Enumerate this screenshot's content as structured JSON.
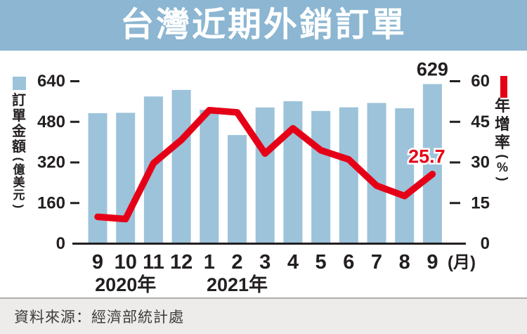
{
  "title": "台灣近期外銷訂單",
  "source": "資料來源：經濟部統計處",
  "colors": {
    "header_bg": "#8cb6d2",
    "bar": "#9cc3da",
    "line": "#e60017",
    "text": "#231f20",
    "footer_bg": "#edecea"
  },
  "chart_data": {
    "type": "bar+line",
    "title": "台灣近期外銷訂單",
    "x_unit_label": "(月)",
    "months": [
      "9",
      "10",
      "11",
      "12",
      "1",
      "2",
      "3",
      "4",
      "5",
      "6",
      "7",
      "8",
      "9"
    ],
    "years": [
      {
        "label": "2020年",
        "anchor_index": 0
      },
      {
        "label": "2021年",
        "anchor_index": 4
      }
    ],
    "left_axis": {
      "title": "訂單金額(億美元)",
      "ticks": [
        640,
        480,
        320,
        160,
        0
      ],
      "range": [
        0,
        640
      ]
    },
    "right_axis": {
      "title": "年增率(%)",
      "ticks": [
        60,
        45,
        30,
        15,
        0
      ],
      "range": [
        0,
        60
      ]
    },
    "grid": false,
    "series": [
      {
        "name": "訂單金額",
        "type": "bar",
        "axis": "left",
        "unit": "億美元",
        "color": "#9cc3da",
        "values": [
          513.9,
          515.6,
          579.8,
          605.6,
          527.2,
          427.8,
          536.6,
          561.0,
          522.9,
          537.3,
          554.5,
          533.3,
          629.0
        ]
      },
      {
        "name": "年增率",
        "type": "line",
        "axis": "right",
        "unit": "%",
        "color": "#e60017",
        "values": [
          9.9,
          9.1,
          29.7,
          38.3,
          49.3,
          48.5,
          33.3,
          42.6,
          34.5,
          31.1,
          21.4,
          17.6,
          25.7
        ]
      }
    ],
    "annotations": [
      {
        "text": "629",
        "target": "last-bar"
      },
      {
        "text": "25.7",
        "target": "last-line-point"
      }
    ]
  }
}
